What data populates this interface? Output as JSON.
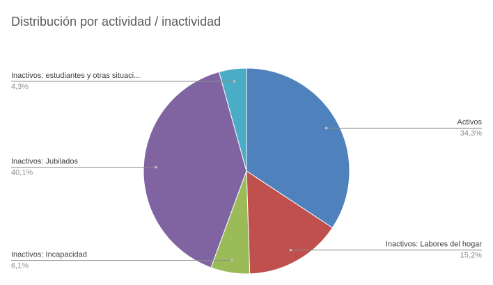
{
  "chart_data": {
    "type": "pie",
    "title": "Distribución por actividad / inactividad",
    "categories": [
      "Activos",
      "Inactivos: Labores del hogar",
      "Inactivos: Incapacidad",
      "Inactivos: Jubilados",
      "Inactivos: estudiantes y otras situaci..."
    ],
    "values": [
      34.3,
      15.2,
      6.1,
      40.1,
      4.3
    ],
    "value_labels": [
      "34,3%",
      "15,2%",
      "6,1%",
      "40,1%",
      "4,3%"
    ],
    "colors": [
      "#4f81bd",
      "#c0504d",
      "#9bbb59",
      "#8064a2",
      "#4bacc6"
    ]
  }
}
